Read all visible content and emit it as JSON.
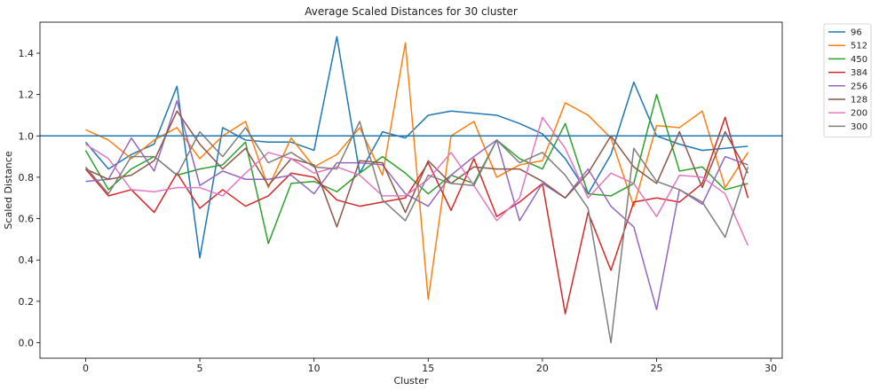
{
  "chart_data": {
    "type": "line",
    "title": "Average Scaled Distances for 30 cluster",
    "xlabel": "Cluster",
    "ylabel": "Scaled Distance",
    "xlim": [
      -2.0,
      30.5
    ],
    "ylim": [
      -0.075,
      1.55
    ],
    "x_ticks": [
      0,
      5,
      10,
      15,
      20,
      25,
      30
    ],
    "y_ticks": [
      0.0,
      0.2,
      0.4,
      0.6,
      0.8,
      1.0,
      1.2,
      1.4
    ],
    "x_tick_labels": [
      "0",
      "5",
      "10",
      "15",
      "20",
      "25",
      "30"
    ],
    "y_tick_labels": [
      "0.0",
      "0.2",
      "0.4",
      "0.6",
      "0.8",
      "1.0",
      "1.2",
      "1.4"
    ],
    "grid": false,
    "legend_position": "outside-right-top",
    "reference_line": {
      "y": 1.0,
      "color": "#1f77b4"
    },
    "x": [
      0,
      1,
      2,
      3,
      4,
      5,
      6,
      7,
      8,
      9,
      10,
      11,
      12,
      13,
      14,
      15,
      16,
      17,
      18,
      19,
      20,
      21,
      22,
      23,
      24,
      25,
      26,
      27,
      28,
      29
    ],
    "series": [
      {
        "name": "96",
        "color": "#1f77b4",
        "values": [
          0.97,
          0.84,
          0.91,
          0.96,
          1.24,
          0.41,
          1.04,
          0.98,
          0.97,
          0.97,
          0.93,
          1.48,
          0.82,
          1.02,
          0.99,
          1.1,
          1.12,
          1.11,
          1.1,
          1.06,
          1.01,
          0.89,
          0.72,
          0.91,
          1.26,
          1.0,
          0.96,
          0.93,
          0.94,
          0.95
        ]
      },
      {
        "name": "512",
        "color": "#ff7f0e",
        "values": [
          1.03,
          0.98,
          0.89,
          0.98,
          1.04,
          0.89,
          1.0,
          1.07,
          0.75,
          0.99,
          0.85,
          0.91,
          1.04,
          0.81,
          1.45,
          0.21,
          1.0,
          1.07,
          0.8,
          0.86,
          0.88,
          1.16,
          1.1,
          0.99,
          0.66,
          1.05,
          1.04,
          1.12,
          0.75,
          0.92
        ]
      },
      {
        "name": "450",
        "color": "#2ca02c",
        "values": [
          0.93,
          0.74,
          0.84,
          0.9,
          0.81,
          0.84,
          0.86,
          0.97,
          0.48,
          0.77,
          0.78,
          0.73,
          0.82,
          0.9,
          0.82,
          0.72,
          0.81,
          0.77,
          0.98,
          0.89,
          0.84,
          1.06,
          0.72,
          0.71,
          0.77,
          1.2,
          0.83,
          0.85,
          0.74,
          0.77
        ]
      },
      {
        "name": "384",
        "color": "#d62728",
        "values": [
          0.84,
          0.71,
          0.74,
          0.63,
          0.82,
          0.65,
          0.74,
          0.66,
          0.71,
          0.82,
          0.8,
          0.69,
          0.66,
          0.68,
          0.7,
          0.87,
          0.64,
          0.89,
          0.61,
          0.68,
          0.77,
          0.14,
          0.63,
          0.35,
          0.68,
          0.7,
          0.68,
          0.77,
          1.09,
          0.7
        ]
      },
      {
        "name": "256",
        "color": "#9467bd",
        "values": [
          0.78,
          0.79,
          0.99,
          0.83,
          1.17,
          0.76,
          0.83,
          0.79,
          0.79,
          0.81,
          0.72,
          0.87,
          0.87,
          0.86,
          0.72,
          0.66,
          0.81,
          0.9,
          0.98,
          0.59,
          0.77,
          0.7,
          0.84,
          0.66,
          0.56,
          0.16,
          0.74,
          0.67,
          0.9,
          0.86
        ]
      },
      {
        "name": "128",
        "color": "#8c564b",
        "values": [
          0.84,
          0.79,
          0.81,
          0.88,
          1.12,
          0.96,
          0.84,
          0.94,
          0.76,
          0.89,
          0.86,
          0.56,
          0.88,
          0.87,
          0.63,
          0.88,
          0.77,
          0.85,
          0.84,
          0.84,
          0.78,
          0.7,
          0.82,
          1.0,
          0.85,
          0.77,
          1.02,
          0.75,
          1.02,
          0.82
        ]
      },
      {
        "name": "200",
        "color": "#e377c2",
        "values": [
          0.96,
          0.89,
          0.74,
          0.73,
          0.75,
          0.75,
          0.71,
          0.82,
          0.92,
          0.89,
          0.82,
          0.85,
          0.81,
          0.71,
          0.71,
          0.79,
          0.92,
          0.76,
          0.59,
          0.7,
          1.09,
          0.94,
          0.7,
          0.82,
          0.77,
          0.61,
          0.81,
          0.8,
          0.72,
          0.47
        ]
      },
      {
        "name": "300",
        "color": "#7f7f7f",
        "values": [
          0.85,
          0.72,
          0.9,
          0.9,
          0.81,
          1.02,
          0.9,
          1.04,
          0.87,
          0.92,
          0.85,
          0.84,
          1.07,
          0.69,
          0.59,
          0.81,
          0.77,
          0.76,
          0.98,
          0.87,
          0.92,
          0.81,
          0.65,
          0.0,
          0.94,
          0.78,
          0.74,
          0.68,
          0.51,
          0.85
        ]
      }
    ]
  }
}
